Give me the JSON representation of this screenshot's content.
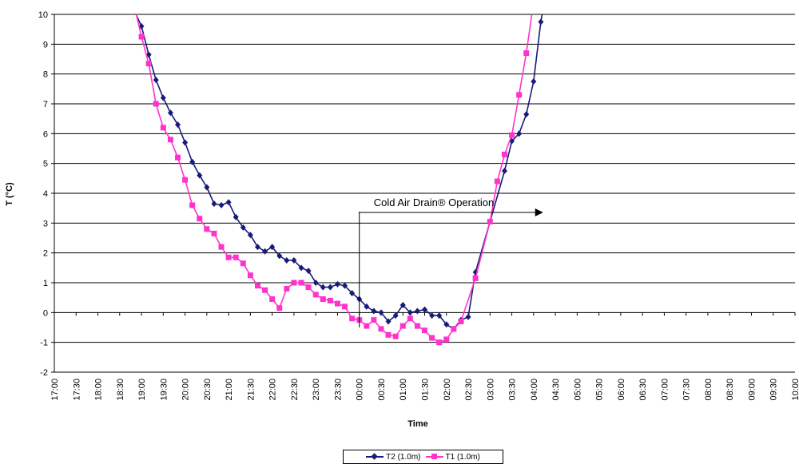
{
  "chart_data": {
    "type": "line",
    "ylabel": "T (°C)",
    "xlabel": "Time",
    "ylim": [
      -2,
      10
    ],
    "yticks": [
      "-2",
      "-1",
      "0",
      "1",
      "2",
      "3",
      "4",
      "5",
      "6",
      "7",
      "8",
      "9",
      "10"
    ],
    "categories": [
      "17:00",
      "17:30",
      "18:00",
      "18:30",
      "19:00",
      "19:30",
      "20:00",
      "20:30",
      "21:00",
      "21:30",
      "22:00",
      "22:30",
      "23:00",
      "23:30",
      "00:00",
      "00:30",
      "01:00",
      "01:30",
      "02:00",
      "02:30",
      "03:00",
      "03:30",
      "04:00",
      "04:30",
      "05:00",
      "05:30",
      "06:00",
      "06:30",
      "07:00",
      "07:30",
      "08:00",
      "08:30",
      "09:00",
      "09:30",
      "10:00"
    ],
    "grid": "horizontal",
    "legend_position": "bottom",
    "annotation": {
      "text": "Cold Air Drain® Operation",
      "at": "00:00"
    },
    "series": [
      {
        "name": "T2 (1.0m)",
        "color": "#1a1a7a",
        "marker": "diamond",
        "points": [
          [
            "18:45",
            10.4
          ],
          [
            "19:00",
            9.6
          ],
          [
            "19:10",
            8.65
          ],
          [
            "19:20",
            7.8
          ],
          [
            "19:30",
            7.2
          ],
          [
            "19:40",
            6.7
          ],
          [
            "19:50",
            6.3
          ],
          [
            "20:00",
            5.7
          ],
          [
            "20:10",
            5.05
          ],
          [
            "20:20",
            4.6
          ],
          [
            "20:30",
            4.2
          ],
          [
            "20:40",
            3.65
          ],
          [
            "20:50",
            3.6
          ],
          [
            "21:00",
            3.7
          ],
          [
            "21:10",
            3.2
          ],
          [
            "21:20",
            2.85
          ],
          [
            "21:30",
            2.6
          ],
          [
            "21:40",
            2.2
          ],
          [
            "21:50",
            2.05
          ],
          [
            "22:00",
            2.2
          ],
          [
            "22:10",
            1.9
          ],
          [
            "22:20",
            1.75
          ],
          [
            "22:30",
            1.75
          ],
          [
            "22:40",
            1.5
          ],
          [
            "22:50",
            1.4
          ],
          [
            "23:00",
            1.0
          ],
          [
            "23:10",
            0.85
          ],
          [
            "23:20",
            0.85
          ],
          [
            "23:30",
            0.95
          ],
          [
            "23:40",
            0.9
          ],
          [
            "23:50",
            0.65
          ],
          [
            "00:00",
            0.45
          ],
          [
            "00:10",
            0.2
          ],
          [
            "00:20",
            0.05
          ],
          [
            "00:30",
            0.0
          ],
          [
            "00:40",
            -0.3
          ],
          [
            "00:50",
            -0.1
          ],
          [
            "01:00",
            0.25
          ],
          [
            "01:10",
            0.0
          ],
          [
            "01:20",
            0.05
          ],
          [
            "01:30",
            0.1
          ],
          [
            "01:40",
            -0.1
          ],
          [
            "01:50",
            -0.1
          ],
          [
            "02:00",
            -0.4
          ],
          [
            "02:10",
            -0.55
          ],
          [
            "02:20",
            -0.25
          ],
          [
            "02:30",
            -0.15
          ],
          [
            "02:40",
            1.35
          ],
          [
            "03:00",
            3.05
          ],
          [
            "03:20",
            4.75
          ],
          [
            "03:30",
            5.75
          ],
          [
            "03:40",
            6.0
          ],
          [
            "03:50",
            6.65
          ],
          [
            "04:00",
            7.75
          ],
          [
            "04:10",
            9.75
          ],
          [
            "04:15",
            10.5
          ]
        ]
      },
      {
        "name": "T1 (1.0m)",
        "color": "#ff33cc",
        "marker": "square",
        "points": [
          [
            "18:50",
            10.3
          ],
          [
            "19:00",
            9.25
          ],
          [
            "19:10",
            8.35
          ],
          [
            "19:20",
            7.0
          ],
          [
            "19:30",
            6.2
          ],
          [
            "19:40",
            5.8
          ],
          [
            "19:50",
            5.2
          ],
          [
            "20:00",
            4.45
          ],
          [
            "20:10",
            3.6
          ],
          [
            "20:20",
            3.15
          ],
          [
            "20:30",
            2.8
          ],
          [
            "20:40",
            2.65
          ],
          [
            "20:50",
            2.2
          ],
          [
            "21:00",
            1.85
          ],
          [
            "21:10",
            1.85
          ],
          [
            "21:20",
            1.65
          ],
          [
            "21:30",
            1.25
          ],
          [
            "21:40",
            0.9
          ],
          [
            "21:50",
            0.75
          ],
          [
            "22:00",
            0.45
          ],
          [
            "22:10",
            0.15
          ],
          [
            "22:20",
            0.8
          ],
          [
            "22:30",
            1.0
          ],
          [
            "22:40",
            1.0
          ],
          [
            "22:50",
            0.85
          ],
          [
            "23:00",
            0.6
          ],
          [
            "23:10",
            0.45
          ],
          [
            "23:20",
            0.4
          ],
          [
            "23:30",
            0.3
          ],
          [
            "23:40",
            0.2
          ],
          [
            "23:50",
            -0.2
          ],
          [
            "00:00",
            -0.25
          ],
          [
            "00:10",
            -0.45
          ],
          [
            "00:20",
            -0.25
          ],
          [
            "00:30",
            -0.55
          ],
          [
            "00:40",
            -0.75
          ],
          [
            "00:50",
            -0.8
          ],
          [
            "01:00",
            -0.45
          ],
          [
            "01:10",
            -0.2
          ],
          [
            "01:20",
            -0.45
          ],
          [
            "01:30",
            -0.6
          ],
          [
            "01:40",
            -0.85
          ],
          [
            "01:50",
            -1.0
          ],
          [
            "02:00",
            -0.9
          ],
          [
            "02:10",
            -0.55
          ],
          [
            "02:20",
            -0.3
          ],
          [
            "02:40",
            1.15
          ],
          [
            "03:00",
            3.05
          ],
          [
            "03:10",
            4.4
          ],
          [
            "03:20",
            5.3
          ],
          [
            "03:30",
            5.95
          ],
          [
            "03:40",
            7.3
          ],
          [
            "03:50",
            8.7
          ],
          [
            "04:00",
            10.4
          ]
        ]
      }
    ]
  }
}
